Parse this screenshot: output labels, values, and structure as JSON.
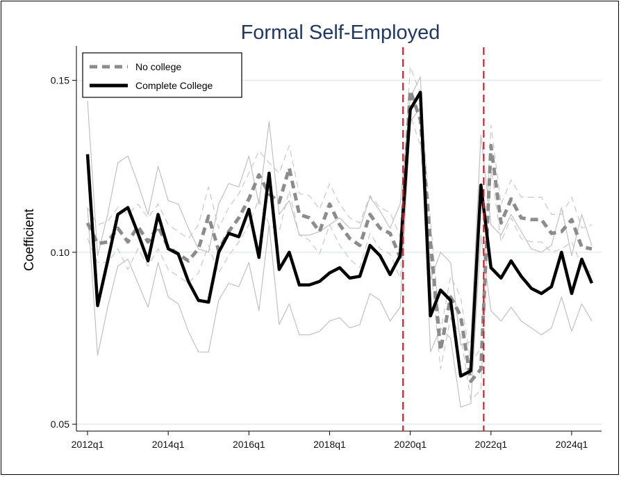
{
  "chart_data": {
    "type": "line",
    "title": "Formal Self-Employed",
    "ylabel": "Coefficient",
    "xlabel": "",
    "ylim": [
      0.048,
      0.16
    ],
    "yticks": [
      0.05,
      0.1,
      0.15
    ],
    "ytick_labels": [
      "0.05",
      "0.10",
      "0.15"
    ],
    "xticks": [
      "2012q1",
      "2014q1",
      "2016q1",
      "2018q1",
      "2020q1",
      "2022q1",
      "2024q1"
    ],
    "x": [
      "2012q1",
      "2012q2",
      "2012q3",
      "2012q4",
      "2013q1",
      "2013q2",
      "2013q3",
      "2013q4",
      "2014q1",
      "2014q2",
      "2014q3",
      "2014q4",
      "2015q1",
      "2015q2",
      "2015q3",
      "2015q4",
      "2016q1",
      "2016q2",
      "2016q3",
      "2016q4",
      "2017q1",
      "2017q2",
      "2017q3",
      "2017q4",
      "2018q1",
      "2018q2",
      "2018q3",
      "2018q4",
      "2019q1",
      "2019q2",
      "2019q3",
      "2019q4",
      "2020q1",
      "2020q2",
      "2020q3",
      "2020q4",
      "2021q1",
      "2021q2",
      "2021q3",
      "2021q4",
      "2022q1",
      "2022q2",
      "2022q3",
      "2022q4",
      "2023q1",
      "2023q2",
      "2023q3",
      "2023q4",
      "2024q1",
      "2024q2",
      "2024q3"
    ],
    "vlines": [
      "2019q4",
      "2021q4"
    ],
    "grid": true,
    "legend_position": "top-left",
    "series": [
      {
        "name": "No college",
        "style": "dashed",
        "color": "#8c8c8c",
        "values": [
          0.1085,
          0.1025,
          0.103,
          0.107,
          0.103,
          0.1075,
          0.103,
          0.1075,
          0.1015,
          0.0995,
          0.0975,
          0.101,
          0.1105,
          0.1005,
          0.106,
          0.11,
          0.1155,
          0.1225,
          0.117,
          0.1145,
          0.1245,
          0.111,
          0.11,
          0.106,
          0.114,
          0.108,
          0.104,
          0.102,
          0.111,
          0.107,
          0.1055,
          0.0985,
          0.147,
          0.1385,
          0.103,
          0.0715,
          0.087,
          0.0815,
          0.0625,
          0.066,
          0.131,
          0.1085,
          0.1155,
          0.11,
          0.1095,
          0.1095,
          0.1055,
          0.106,
          0.1095,
          0.1015,
          0.101
        ]
      },
      {
        "name": "Complete College",
        "style": "solid",
        "color": "#000000",
        "values": [
          0.1285,
          0.0845,
          0.0975,
          0.111,
          0.113,
          0.1055,
          0.0975,
          0.111,
          0.101,
          0.0995,
          0.0915,
          0.086,
          0.0855,
          0.1,
          0.1055,
          0.1045,
          0.1125,
          0.0985,
          0.123,
          0.095,
          0.1,
          0.0905,
          0.0905,
          0.0915,
          0.094,
          0.0955,
          0.0925,
          0.093,
          0.102,
          0.099,
          0.0935,
          0.099,
          0.1415,
          0.1465,
          0.0815,
          0.089,
          0.086,
          0.064,
          0.0655,
          0.1195,
          0.0955,
          0.0925,
          0.0975,
          0.093,
          0.0895,
          0.088,
          0.09,
          0.1,
          0.088,
          0.098,
          0.091
        ]
      },
      {
        "name": "",
        "style": "thin-dashed",
        "color": "#c8c8c8",
        "values": [
          0.113,
          0.108,
          0.109,
          0.113,
          0.111,
          0.114,
          0.11,
          0.114,
          0.108,
          0.106,
          0.104,
          0.108,
          0.119,
          0.107,
          0.113,
          0.117,
          0.123,
          0.1295,
          0.126,
          0.123,
          0.131,
          0.117,
          0.1165,
          0.1125,
          0.12,
          0.114,
          0.11,
          0.1085,
          0.1165,
          0.113,
          0.1115,
          0.1045,
          0.154,
          0.146,
          0.109,
          0.077,
          0.093,
          0.087,
          0.068,
          0.072,
          0.137,
          0.114,
          0.121,
          0.116,
          0.116,
          0.116,
          0.111,
          0.111,
          0.116,
          0.107,
          0.108
        ]
      },
      {
        "name": "",
        "style": "thin-dashed",
        "color": "#c8c8c8",
        "values": [
          0.104,
          0.097,
          0.097,
          0.101,
          0.095,
          0.101,
          0.096,
          0.101,
          0.095,
          0.093,
          0.091,
          0.094,
          0.102,
          0.094,
          0.099,
          0.103,
          0.108,
          0.1155,
          0.108,
          0.106,
          0.118,
          0.105,
          0.1035,
          0.0995,
          0.108,
          0.102,
          0.098,
          0.0955,
          0.1055,
          0.101,
          0.0995,
          0.0925,
          0.14,
          0.131,
          0.097,
          0.066,
          0.081,
          0.076,
          0.057,
          0.06,
          0.125,
          0.103,
          0.11,
          0.104,
          0.103,
          0.103,
          0.1,
          0.101,
          0.103,
          0.096,
          0.094
        ]
      },
      {
        "name": "",
        "style": "thin-solid",
        "color": "#c0c0c0",
        "values": [
          0.144,
          0.099,
          0.111,
          0.126,
          0.128,
          0.12,
          0.111,
          0.125,
          0.115,
          0.114,
          0.107,
          0.101,
          0.1,
          0.114,
          0.12,
          0.119,
          0.128,
          0.114,
          0.138,
          0.111,
          0.115,
          0.105,
          0.105,
          0.106,
          0.108,
          0.11,
          0.107,
          0.107,
          0.116,
          0.112,
          0.107,
          0.114,
          0.145,
          0.151,
          0.092,
          0.1,
          0.097,
          0.073,
          0.074,
          0.134,
          0.108,
          0.105,
          0.111,
          0.106,
          0.101,
          0.1,
          0.102,
          0.113,
          0.099,
          0.111,
          0.102
        ]
      },
      {
        "name": "",
        "style": "thin-solid",
        "color": "#c0c0c0",
        "values": [
          0.113,
          0.07,
          0.084,
          0.096,
          0.098,
          0.091,
          0.084,
          0.097,
          0.087,
          0.085,
          0.077,
          0.071,
          0.071,
          0.086,
          0.091,
          0.09,
          0.097,
          0.083,
          0.108,
          0.079,
          0.085,
          0.076,
          0.076,
          0.077,
          0.08,
          0.081,
          0.078,
          0.079,
          0.088,
          0.086,
          0.08,
          0.084,
          0.138,
          0.142,
          0.071,
          0.078,
          0.075,
          0.055,
          0.056,
          0.105,
          0.083,
          0.08,
          0.084,
          0.08,
          0.078,
          0.076,
          0.078,
          0.087,
          0.077,
          0.085,
          0.08
        ]
      }
    ]
  },
  "colors": {
    "title": "#1f3864",
    "vline": "#e8131f",
    "grid": "#e2ebed",
    "no_college": "#8c8c8c",
    "complete_college": "#000000",
    "ci_band": "#c0c0c0"
  }
}
